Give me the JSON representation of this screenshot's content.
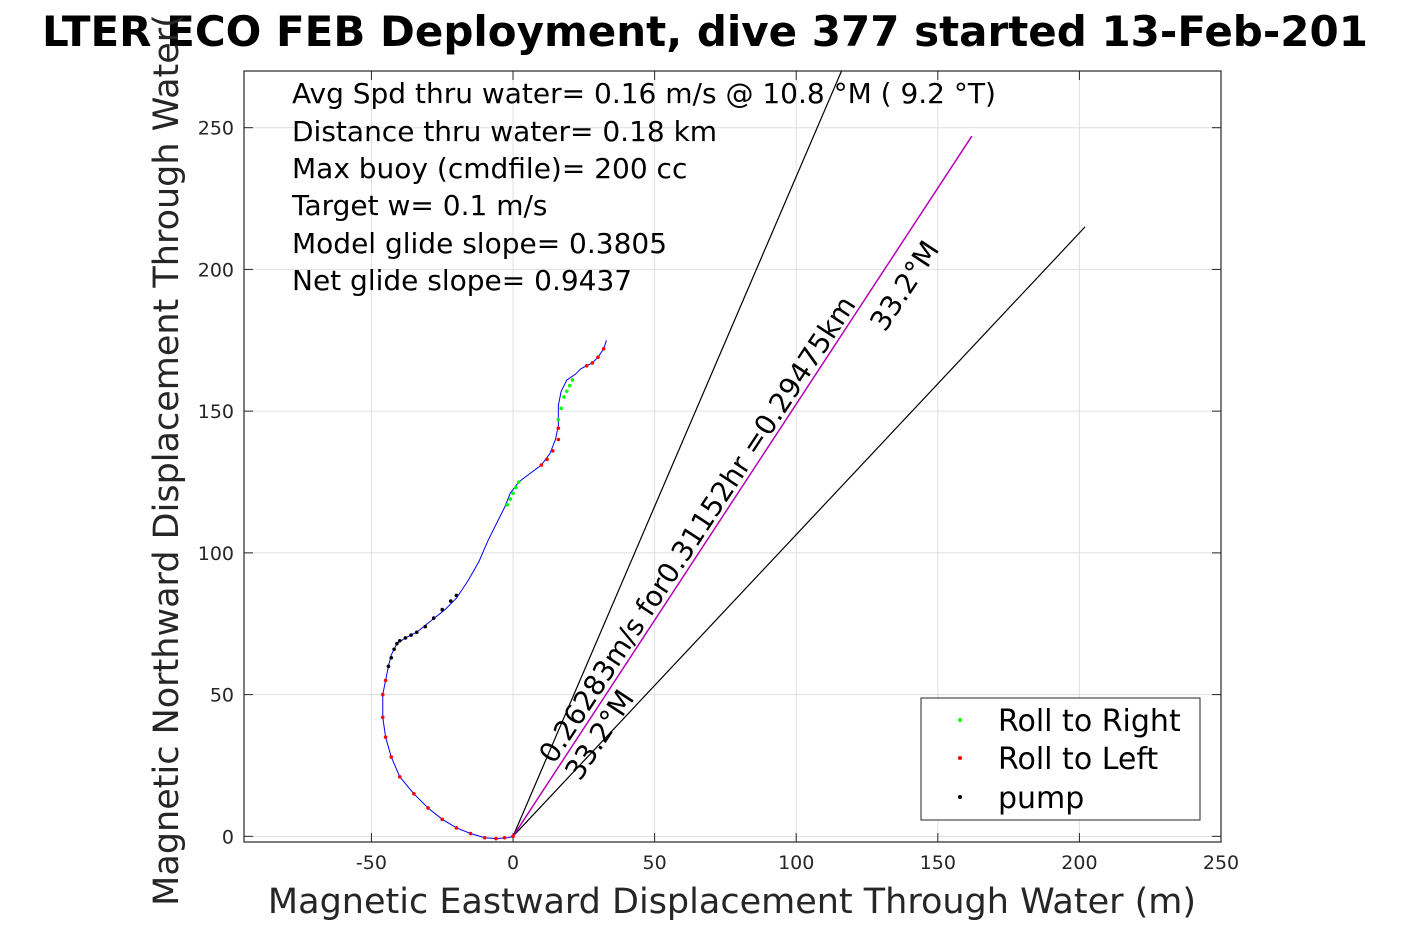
{
  "chart_data": {
    "type": "line",
    "title": "LTER ECO FEB Deployment, dive 377 started 13-Feb-201",
    "xlabel": "Magnetic Eastward Displacement Through Water (m)",
    "ylabel": "Magnetic Northward Displacement Through Water(",
    "xlim": [
      -95,
      250
    ],
    "ylim": [
      -2,
      270
    ],
    "xticks": [
      -50,
      0,
      50,
      100,
      150,
      200,
      250
    ],
    "xtick_labels": [
      "-50",
      "0",
      "50",
      "100",
      "150",
      "200",
      "250"
    ],
    "yticks": [
      0,
      50,
      100,
      150,
      200,
      250
    ],
    "ytick_labels": [
      "0",
      "50",
      "100",
      "150",
      "200",
      "250"
    ],
    "grid": true,
    "info_lines": [
      "Avg Spd thru water=  0.16 m/s @  10.8 °M (  9.2 °T)",
      "Distance thru water=  0.18 km",
      "Max buoy (cmdfile)= 200 cc",
      "Target w= 0.1 m/s",
      "Model glide slope= 0.3805",
      "Net glide slope= 0.9437"
    ],
    "annotations": [
      "0.26283m/s for0.31152hr =0.29475km",
      "33.2°M",
      "33.2°M"
    ],
    "track": {
      "color": "#0000ff",
      "x": [
        0,
        -2,
        -6,
        -10,
        -15,
        -20,
        -25,
        -30,
        -35,
        -40,
        -43,
        -45,
        -46,
        -46,
        -45,
        -44,
        -43,
        -41,
        -38,
        -34,
        -29,
        -24,
        -20,
        -16,
        -12,
        -9,
        -6,
        -3,
        -1,
        2,
        6,
        10,
        13,
        15,
        16,
        16,
        17,
        19,
        22,
        24,
        26,
        28,
        30,
        32,
        33
      ],
      "y": [
        0,
        -0.5,
        -0.8,
        -0.5,
        1,
        3,
        6,
        10,
        15,
        21,
        28,
        35,
        42,
        50,
        55,
        60,
        64,
        68,
        70,
        72,
        76,
        80,
        84,
        90,
        97,
        104,
        110,
        116,
        121,
        125,
        128,
        131,
        135,
        140,
        145,
        152,
        157,
        161,
        163,
        165,
        166,
        167,
        169,
        172,
        175
      ]
    },
    "heading_lines": {
      "color": "#000000",
      "from": [
        0,
        0
      ],
      "ends": [
        [
          116,
          270
        ],
        [
          162,
          247
        ],
        [
          202,
          215
        ]
      ]
    },
    "net_line": {
      "color": "#bf00bf",
      "from": [
        0,
        0
      ],
      "to": [
        162,
        247
      ]
    },
    "legend": {
      "placement": "bottom-right",
      "entries": [
        {
          "label": "Roll to Right",
          "color": "#00ff00"
        },
        {
          "label": "Roll to Left",
          "color": "#ff0000"
        },
        {
          "label": "pump",
          "color": "#000000"
        }
      ]
    },
    "roll_right_points": {
      "x": [
        -2,
        -1,
        0,
        1,
        2,
        16,
        17,
        18,
        19,
        20,
        21
      ],
      "y": [
        117,
        119,
        121,
        123,
        125,
        147,
        151,
        155,
        157,
        159,
        161
      ]
    },
    "roll_left_points": {
      "x": [
        0,
        -3,
        -6,
        -10,
        -15,
        -20,
        -25,
        -30,
        -35,
        -40,
        -43,
        -45,
        -46,
        -46,
        -45,
        10,
        12,
        14,
        16,
        16,
        26,
        28,
        30,
        32
      ],
      "y": [
        0,
        -0.5,
        -0.8,
        -0.5,
        1,
        3,
        6,
        10,
        15,
        21,
        28,
        35,
        42,
        50,
        55,
        131,
        133,
        136,
        140,
        144,
        166,
        167,
        169,
        172
      ]
    },
    "pump_points": {
      "x": [
        -44,
        -43,
        -42,
        -41,
        -40,
        -38,
        -36,
        -34,
        -31,
        -28,
        -25,
        -22,
        -20
      ],
      "y": [
        60,
        63,
        66,
        68,
        69,
        70,
        71,
        72,
        74,
        77,
        80,
        83,
        85
      ]
    }
  }
}
